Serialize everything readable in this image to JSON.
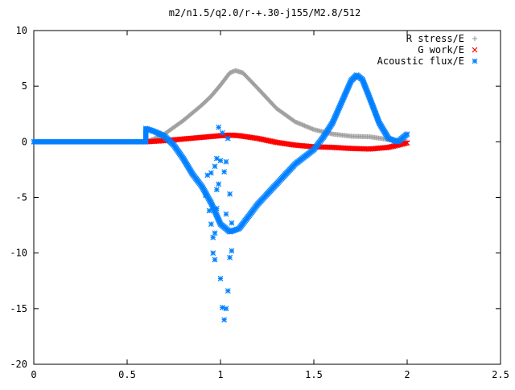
{
  "chart_data": {
    "type": "scatter",
    "title": "m2/n1.5/q2.0/r-+.30-j155/M2.8/512",
    "xlabel": "",
    "ylabel": "",
    "xlim": [
      0,
      2.5
    ],
    "ylim": [
      -20,
      10
    ],
    "x_ticks": [
      0,
      0.5,
      1,
      1.5,
      2,
      2.5
    ],
    "x_tick_labels": [
      "0",
      "0.5",
      "1",
      "1.5",
      "2",
      "2.5"
    ],
    "y_ticks": [
      -20,
      -15,
      -10,
      -5,
      0,
      5,
      10
    ],
    "y_tick_labels": [
      "-20",
      "-15",
      "-10",
      "-5",
      "0",
      "5",
      "10"
    ],
    "grid": false,
    "legend_position": "top-right",
    "series": [
      {
        "name": "R stress/E",
        "marker": "+",
        "color": "#a0a0a0",
        "points": [
          [
            0.6,
            0.0
          ],
          [
            0.65,
            0.3
          ],
          [
            0.7,
            0.7
          ],
          [
            0.75,
            1.3
          ],
          [
            0.8,
            1.9
          ],
          [
            0.85,
            2.6
          ],
          [
            0.9,
            3.3
          ],
          [
            0.95,
            4.1
          ],
          [
            1.0,
            5.1
          ],
          [
            1.05,
            6.2
          ],
          [
            1.08,
            6.4
          ],
          [
            1.12,
            6.2
          ],
          [
            1.2,
            4.8
          ],
          [
            1.3,
            3.0
          ],
          [
            1.4,
            1.8
          ],
          [
            1.5,
            1.1
          ],
          [
            1.6,
            0.7
          ],
          [
            1.7,
            0.5
          ],
          [
            1.8,
            0.45
          ],
          [
            1.9,
            0.2
          ],
          [
            2.0,
            0.0
          ]
        ]
      },
      {
        "name": "G work/E",
        "marker": "x",
        "color": "#ff0000",
        "points": [
          [
            0.6,
            0.0
          ],
          [
            0.7,
            0.1
          ],
          [
            0.8,
            0.25
          ],
          [
            0.9,
            0.4
          ],
          [
            1.0,
            0.55
          ],
          [
            1.05,
            0.6
          ],
          [
            1.1,
            0.55
          ],
          [
            1.2,
            0.3
          ],
          [
            1.3,
            -0.05
          ],
          [
            1.4,
            -0.3
          ],
          [
            1.5,
            -0.45
          ],
          [
            1.6,
            -0.5
          ],
          [
            1.7,
            -0.6
          ],
          [
            1.8,
            -0.65
          ],
          [
            1.9,
            -0.5
          ],
          [
            2.0,
            -0.1
          ]
        ]
      },
      {
        "name": "Acoustic flux/E",
        "marker": "*",
        "color": "#0080ff",
        "points": [
          [
            0.0,
            0.0
          ],
          [
            0.1,
            0.0
          ],
          [
            0.2,
            0.0
          ],
          [
            0.3,
            0.0
          ],
          [
            0.4,
            0.0
          ],
          [
            0.5,
            0.0
          ],
          [
            0.6,
            0.0
          ],
          [
            0.6,
            1.2
          ],
          [
            0.65,
            0.9
          ],
          [
            0.7,
            0.5
          ],
          [
            0.75,
            -0.3
          ],
          [
            0.8,
            -1.5
          ],
          [
            0.85,
            -2.9
          ],
          [
            0.9,
            -4.0
          ],
          [
            0.95,
            -5.5
          ],
          [
            1.0,
            -7.4
          ],
          [
            1.05,
            -8.1
          ],
          [
            1.1,
            -7.8
          ],
          [
            1.15,
            -6.7
          ],
          [
            1.2,
            -5.6
          ],
          [
            1.3,
            -3.8
          ],
          [
            1.4,
            -2.0
          ],
          [
            1.5,
            -0.7
          ],
          [
            1.55,
            0.4
          ],
          [
            1.6,
            1.7
          ],
          [
            1.65,
            3.6
          ],
          [
            1.7,
            5.5
          ],
          [
            1.73,
            6.0
          ],
          [
            1.76,
            5.6
          ],
          [
            1.8,
            3.9
          ],
          [
            1.85,
            1.7
          ],
          [
            1.9,
            0.3
          ],
          [
            1.95,
            0.0
          ],
          [
            2.0,
            0.7
          ]
        ],
        "scatter_points": [
          [
            0.92,
            -4.8
          ],
          [
            0.93,
            -3.0
          ],
          [
            0.94,
            -6.2
          ],
          [
            0.95,
            -7.4
          ],
          [
            0.95,
            -2.8
          ],
          [
            0.96,
            -8.6
          ],
          [
            0.96,
            -10.0
          ],
          [
            0.97,
            -10.6
          ],
          [
            0.97,
            -8.2
          ],
          [
            0.97,
            -2.2
          ],
          [
            0.98,
            -4.3
          ],
          [
            0.98,
            -6.0
          ],
          [
            0.98,
            -1.5
          ],
          [
            0.99,
            -3.8
          ],
          [
            0.99,
            1.3
          ],
          [
            1.0,
            -12.3
          ],
          [
            1.0,
            -1.7
          ],
          [
            1.01,
            -14.9
          ],
          [
            1.01,
            0.8
          ],
          [
            1.02,
            -16.0
          ],
          [
            1.02,
            -2.7
          ],
          [
            1.03,
            -15.0
          ],
          [
            1.03,
            -6.5
          ],
          [
            1.03,
            -1.8
          ],
          [
            1.04,
            -13.4
          ],
          [
            1.04,
            0.3
          ],
          [
            1.05,
            -10.4
          ],
          [
            1.05,
            -4.7
          ],
          [
            1.06,
            -9.8
          ],
          [
            1.06,
            -7.3
          ]
        ]
      }
    ]
  }
}
